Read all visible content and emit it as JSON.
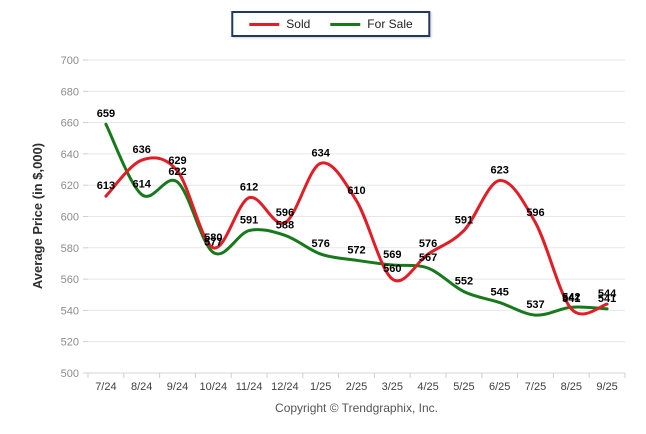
{
  "legend": {
    "items": [
      {
        "label": "Sold",
        "color": "#e11d26"
      },
      {
        "label": "For Sale",
        "color": "#17791c"
      }
    ],
    "border_color": "#1f3864"
  },
  "chart_data": {
    "type": "line",
    "title": "",
    "xlabel": "",
    "ylabel": "Average Price (in $,000)",
    "ylim": [
      500,
      700
    ],
    "ytick_step": 20,
    "grid": true,
    "legend_position": "top-center",
    "categories": [
      "7/24",
      "8/24",
      "9/24",
      "10/24",
      "11/24",
      "12/24",
      "1/25",
      "2/25",
      "3/25",
      "4/25",
      "5/25",
      "6/25",
      "7/25",
      "8/25",
      "9/25"
    ],
    "series": [
      {
        "name": "Sold",
        "color": "#e11d26",
        "values": [
          613,
          636,
          629,
          580,
          612,
          596,
          634,
          610,
          560,
          576,
          591,
          623,
          596,
          541,
          544
        ]
      },
      {
        "name": "For Sale",
        "color": "#17791c",
        "values": [
          659,
          614,
          622,
          577,
          591,
          588,
          576,
          572,
          569,
          567,
          552,
          545,
          537,
          542,
          541
        ]
      }
    ]
  },
  "footer": {
    "copyright": "Copyright © Trendgraphix, Inc."
  }
}
